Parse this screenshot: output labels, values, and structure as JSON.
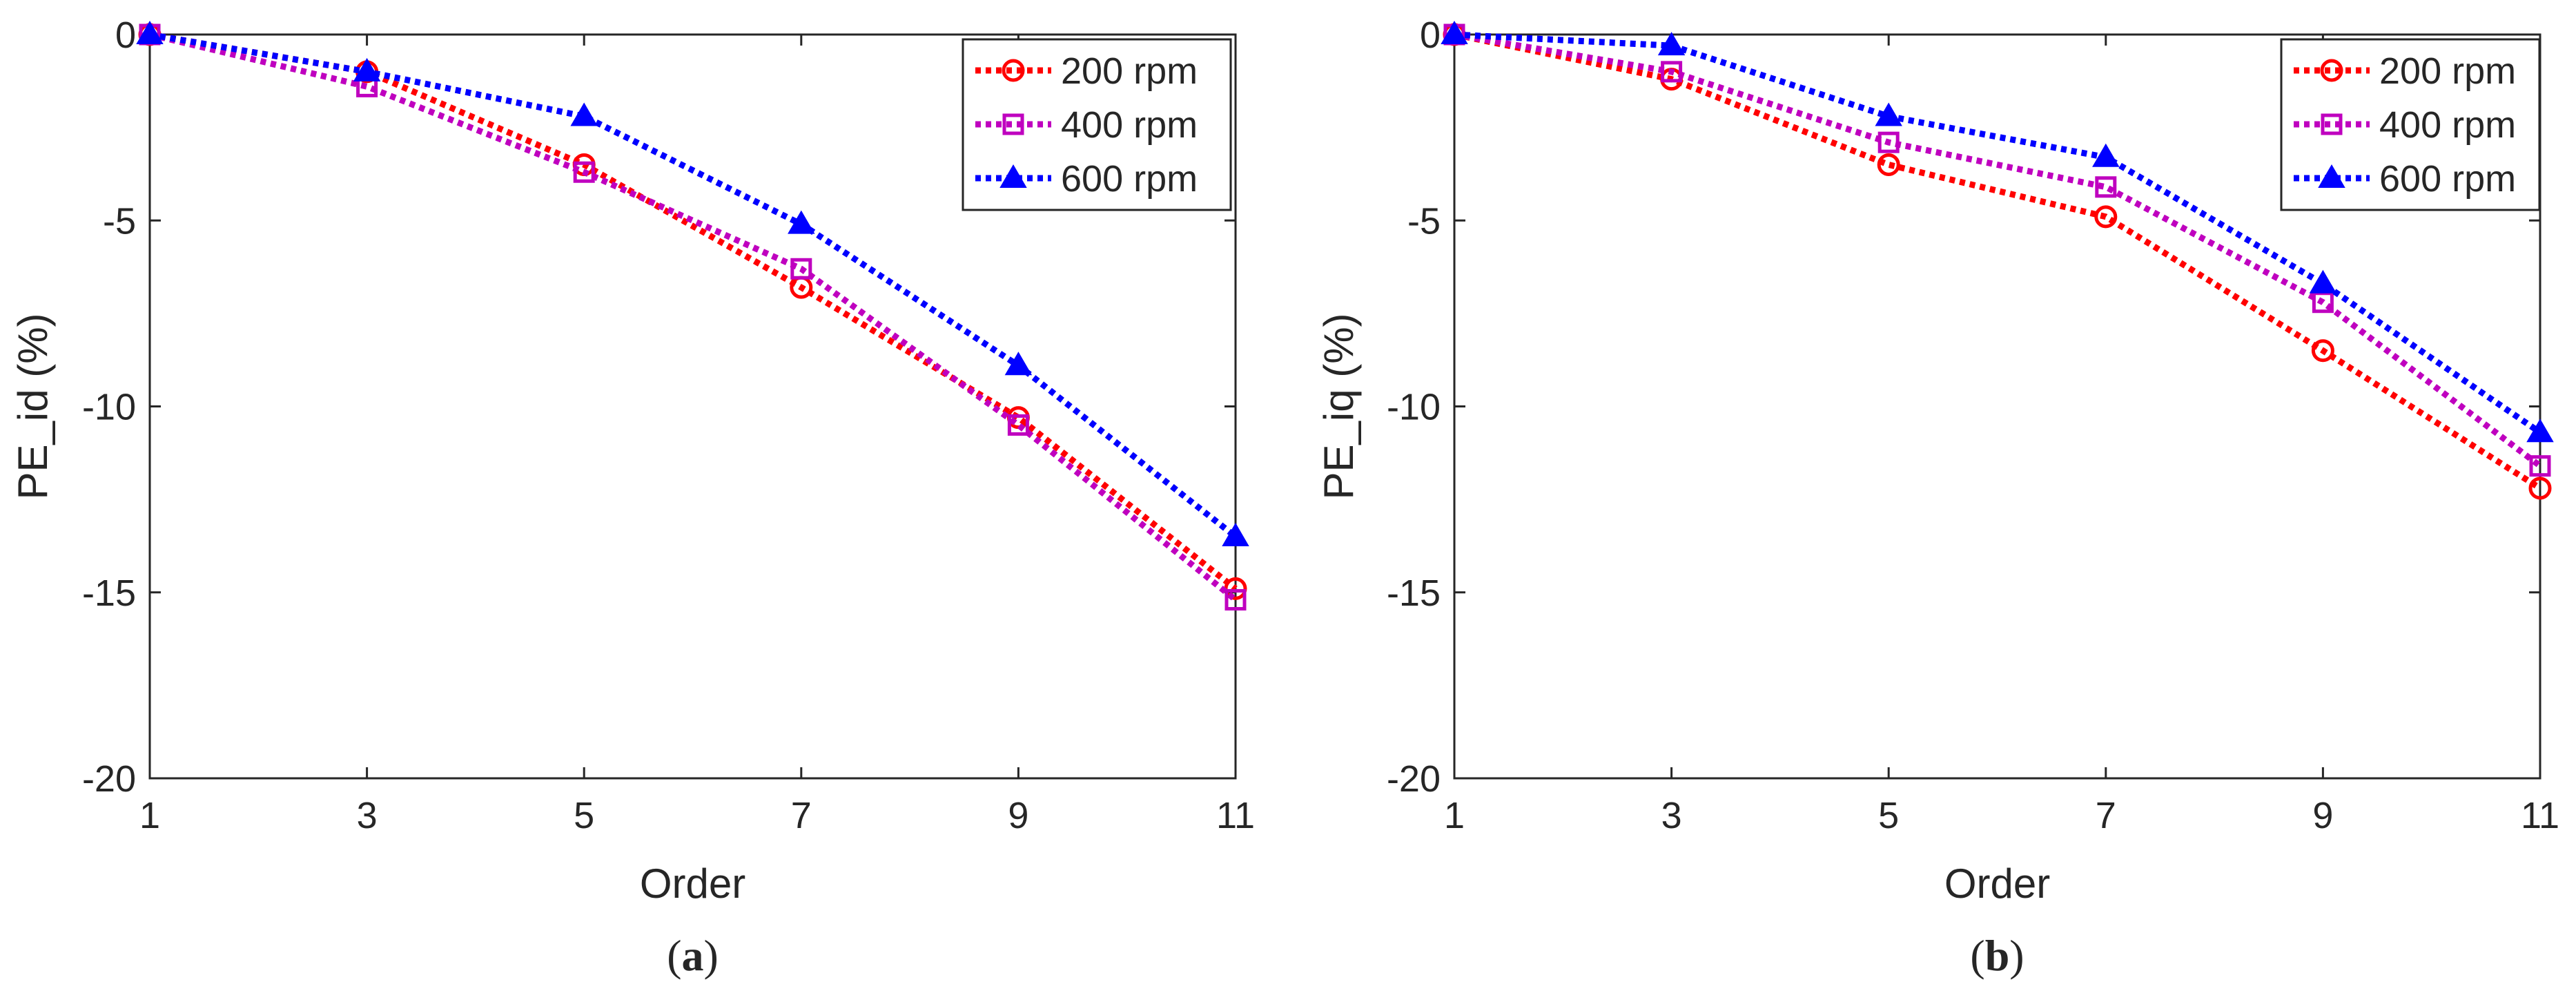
{
  "chart_data": [
    {
      "type": "line",
      "panel_label": "a",
      "title": "",
      "xlabel": "Order",
      "ylabel": "PE_id (%)",
      "x": [
        1,
        3,
        5,
        7,
        9,
        11
      ],
      "xlim": [
        1,
        11
      ],
      "ylim": [
        -20,
        0
      ],
      "xticks": [
        1,
        3,
        5,
        7,
        9,
        11
      ],
      "yticks": [
        0,
        -5,
        -10,
        -15,
        -20
      ],
      "grid": false,
      "legend_position": "top-right",
      "series": [
        {
          "name": "200 rpm",
          "color": "#ff0000",
          "marker": "circle",
          "values": [
            0,
            -1.0,
            -3.5,
            -6.8,
            -10.3,
            -14.9
          ]
        },
        {
          "name": "400 rpm",
          "color": "#bf00bf",
          "marker": "square",
          "values": [
            0,
            -1.4,
            -3.7,
            -6.3,
            -10.5,
            -15.2
          ]
        },
        {
          "name": "600 rpm",
          "color": "#0000ff",
          "marker": "triangle",
          "values": [
            0,
            -1.0,
            -2.2,
            -5.1,
            -8.9,
            -13.5
          ]
        }
      ]
    },
    {
      "type": "line",
      "panel_label": "b",
      "title": "",
      "xlabel": "Order",
      "ylabel": "PE_iq (%)",
      "x": [
        1,
        3,
        5,
        7,
        9,
        11
      ],
      "xlim": [
        1,
        11
      ],
      "ylim": [
        -20,
        0
      ],
      "xticks": [
        1,
        3,
        5,
        7,
        9,
        11
      ],
      "yticks": [
        0,
        -5,
        -10,
        -15,
        -20
      ],
      "grid": false,
      "legend_position": "top-right",
      "series": [
        {
          "name": "200 rpm",
          "color": "#ff0000",
          "marker": "circle",
          "values": [
            0,
            -1.2,
            -3.5,
            -4.9,
            -8.5,
            -12.2
          ]
        },
        {
          "name": "400 rpm",
          "color": "#bf00bf",
          "marker": "square",
          "values": [
            0,
            -1.0,
            -2.9,
            -4.1,
            -7.2,
            -11.6
          ]
        },
        {
          "name": "600 rpm",
          "color": "#0000ff",
          "marker": "triangle",
          "values": [
            0,
            -0.3,
            -2.2,
            -3.3,
            -6.7,
            -10.7
          ]
        }
      ]
    }
  ]
}
